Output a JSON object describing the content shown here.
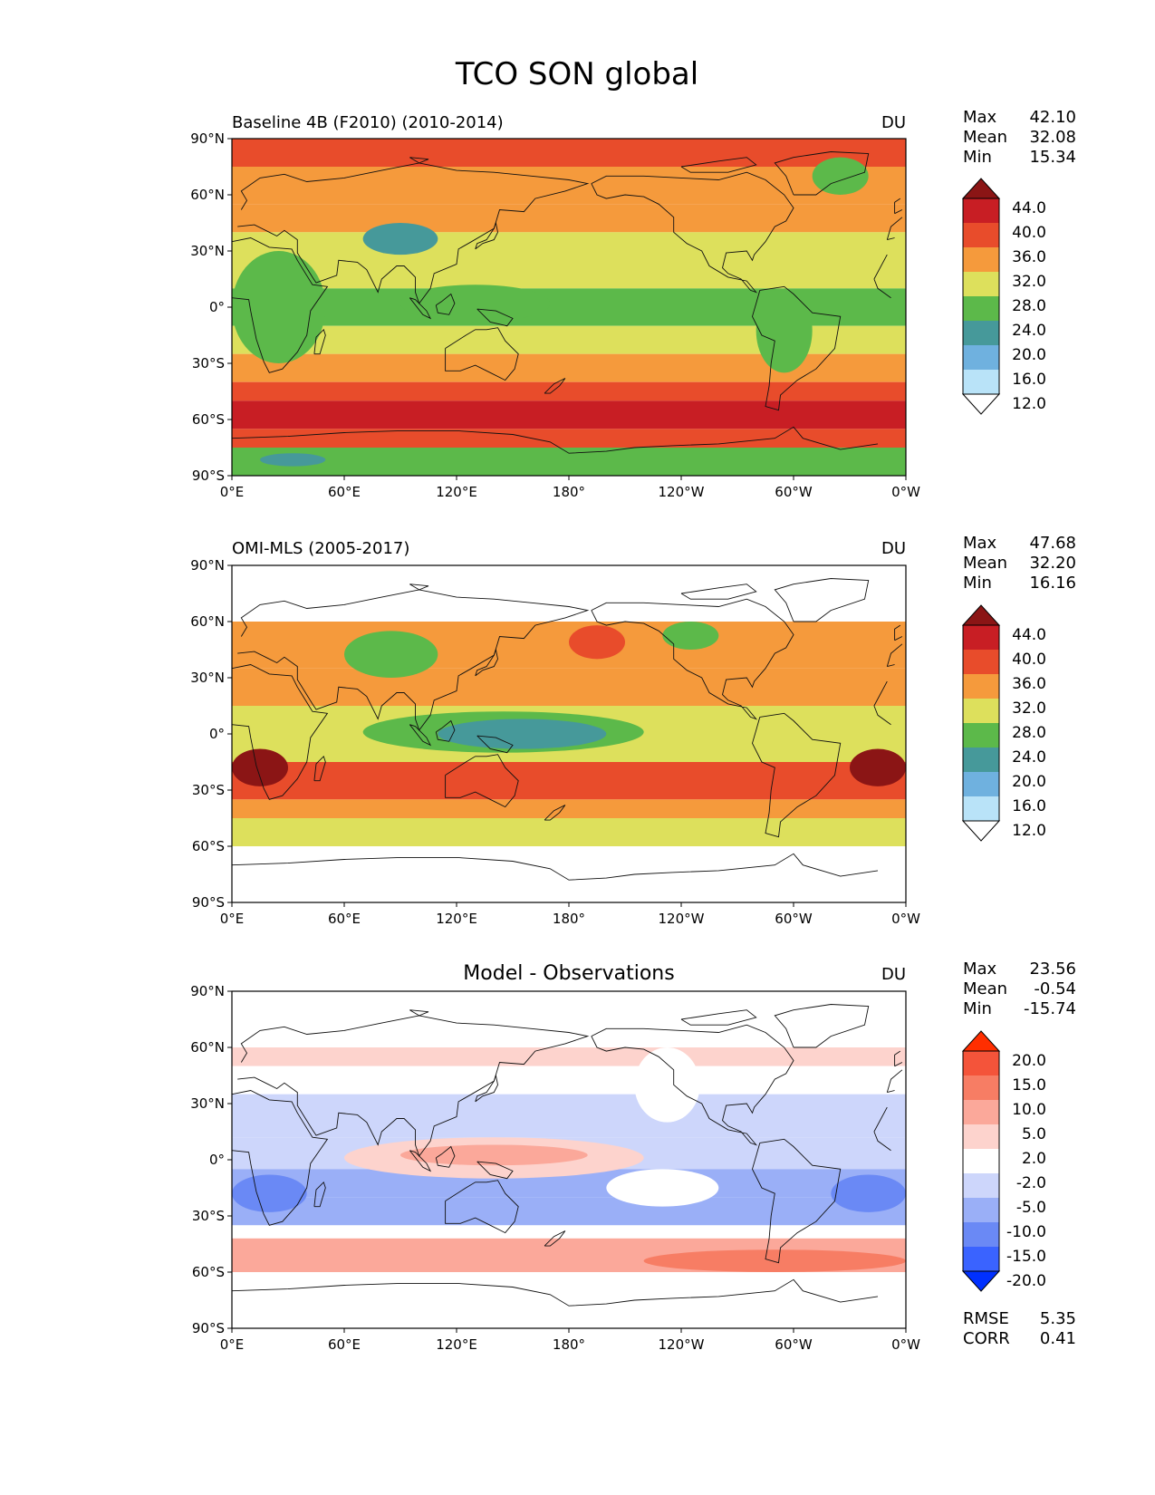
{
  "figure": {
    "title": "TCO SON global"
  },
  "x_ticks": [
    "0°E",
    "60°E",
    "120°E",
    "180°",
    "120°W",
    "60°W",
    "0°W"
  ],
  "y_ticks": [
    "90°N",
    "60°N",
    "30°N",
    "0°",
    "30°S",
    "60°S",
    "90°S"
  ],
  "stat_labels": {
    "max": "Max",
    "mean": "Mean",
    "min": "Min",
    "rmse": "RMSE",
    "corr": "CORR"
  },
  "colormaps": {
    "abs": {
      "colors": [
        "#ffffff",
        "#b9e3f8",
        "#6fb1df",
        "#46999a",
        "#5cb94a",
        "#dde05c",
        "#f59a3c",
        "#e84c2b",
        "#c81e24",
        "#8b1515"
      ],
      "labels": [
        "12.0",
        "16.0",
        "20.0",
        "24.0",
        "28.0",
        "32.0",
        "36.0",
        "40.0",
        "44.0"
      ]
    },
    "diff": {
      "colors": [
        "#0030ff",
        "#3a63ff",
        "#6a89f5",
        "#9aaff7",
        "#cdd6fb",
        "#ffffff",
        "#fdd3cd",
        "#fba89a",
        "#f77d64",
        "#f4543a",
        "#ff2e00"
      ],
      "labels": [
        "-20.0",
        "-15.0",
        "-10.0",
        "-5.0",
        "-2.0",
        "2.0",
        "5.0",
        "10.0",
        "15.0",
        "20.0"
      ]
    }
  },
  "chart_data": [
    {
      "type": "heatmap",
      "title": "Baseline 4B (F2010) (2010-2014)",
      "units": "DU",
      "stats": {
        "max": "42.10",
        "mean": "32.08",
        "min": "15.34"
      },
      "colormap": "abs",
      "lon_range": [
        0,
        360
      ],
      "lat_range": [
        -90,
        90
      ],
      "zonal_bands": [
        {
          "lat": [
            75,
            90
          ],
          "value": 38
        },
        {
          "lat": [
            55,
            75
          ],
          "value": 34
        },
        {
          "lat": [
            40,
            55
          ],
          "value": 32
        },
        {
          "lat": [
            10,
            40
          ],
          "value": 30
        },
        {
          "lat": [
            -10,
            10
          ],
          "value": 26
        },
        {
          "lat": [
            -25,
            -10
          ],
          "value": 29
        },
        {
          "lat": [
            -40,
            -25
          ],
          "value": 34
        },
        {
          "lat": [
            -50,
            -40
          ],
          "value": 38
        },
        {
          "lat": [
            -65,
            -50
          ],
          "value": 41
        },
        {
          "lat": [
            -75,
            -65
          ],
          "value": 37
        },
        {
          "lat": [
            -90,
            -75
          ],
          "value": 26
        }
      ],
      "features": [
        {
          "lon": [
            0,
            50
          ],
          "lat": [
            -30,
            30
          ],
          "value": 26
        },
        {
          "lon": [
            90,
            170
          ],
          "lat": [
            -8,
            12
          ],
          "value": 26
        },
        {
          "lon": [
            80,
            100
          ],
          "lat": [
            30,
            40
          ],
          "value": 17
        },
        {
          "lon": [
            70,
            110
          ],
          "lat": [
            28,
            45
          ],
          "value": 22
        },
        {
          "lon": [
            280,
            310
          ],
          "lat": [
            -35,
            10
          ],
          "value": 25
        },
        {
          "lon": [
            15,
            50
          ],
          "lat": [
            -85,
            -78
          ],
          "value": 23
        },
        {
          "lon": [
            310,
            340
          ],
          "lat": [
            60,
            80
          ],
          "value": 27
        }
      ]
    },
    {
      "type": "heatmap",
      "title": "OMI-MLS (2005-2017)",
      "units": "DU",
      "stats": {
        "max": "47.68",
        "mean": "32.20",
        "min": "16.16"
      },
      "colormap": "abs",
      "lon_range": [
        0,
        360
      ],
      "lat_range": [
        -90,
        90
      ],
      "zonal_bands": [
        {
          "lat": [
            35,
            60
          ],
          "value": 33
        },
        {
          "lat": [
            15,
            35
          ],
          "value": 34
        },
        {
          "lat": [
            0,
            15
          ],
          "value": 30
        },
        {
          "lat": [
            -15,
            0
          ],
          "value": 30
        },
        {
          "lat": [
            -35,
            -15
          ],
          "value": 38
        },
        {
          "lat": [
            -45,
            -35
          ],
          "value": 34
        },
        {
          "lat": [
            -60,
            -45
          ],
          "value": 30
        }
      ],
      "features": [
        {
          "lon": [
            70,
            220
          ],
          "lat": [
            -10,
            12
          ],
          "value": 26
        },
        {
          "lon": [
            110,
            200
          ],
          "lat": [
            -8,
            8
          ],
          "value": 22
        },
        {
          "lon": [
            0,
            30
          ],
          "lat": [
            -28,
            -8
          ],
          "value": 45
        },
        {
          "lon": [
            330,
            360
          ],
          "lat": [
            -28,
            -8
          ],
          "value": 45
        },
        {
          "lon": [
            60,
            110
          ],
          "lat": [
            30,
            55
          ],
          "value": 27
        },
        {
          "lon": [
            230,
            260
          ],
          "lat": [
            45,
            60
          ],
          "value": 27
        },
        {
          "lon": [
            180,
            210
          ],
          "lat": [
            40,
            58
          ],
          "value": 38
        }
      ]
    },
    {
      "type": "heatmap",
      "title": "Model - Observations",
      "units": "DU",
      "stats": {
        "max": "23.56",
        "mean": "-0.54",
        "min": "-15.74"
      },
      "error_stats": {
        "rmse": "5.35",
        "corr": "0.41"
      },
      "colormap": "diff",
      "lon_range": [
        0,
        360
      ],
      "lat_range": [
        -90,
        90
      ],
      "zonal_bands": [
        {
          "lat": [
            50,
            60
          ],
          "value": 3
        },
        {
          "lat": [
            35,
            50
          ],
          "value": 0
        },
        {
          "lat": [
            12,
            35
          ],
          "value": -4
        },
        {
          "lat": [
            -5,
            12
          ],
          "value": -4
        },
        {
          "lat": [
            -20,
            -5
          ],
          "value": -6
        },
        {
          "lat": [
            -35,
            -20
          ],
          "value": -7
        },
        {
          "lat": [
            -42,
            -35
          ],
          "value": 0
        },
        {
          "lat": [
            -60,
            -42
          ],
          "value": 8
        }
      ],
      "features": [
        {
          "lon": [
            60,
            220
          ],
          "lat": [
            -10,
            12
          ],
          "value": 3
        },
        {
          "lon": [
            90,
            190
          ],
          "lat": [
            -3,
            8
          ],
          "value": 6
        },
        {
          "lon": [
            0,
            40
          ],
          "lat": [
            -28,
            -8
          ],
          "value": -11
        },
        {
          "lon": [
            320,
            360
          ],
          "lat": [
            -28,
            -8
          ],
          "value": -11
        },
        {
          "lon": [
            200,
            260
          ],
          "lat": [
            -25,
            -5
          ],
          "value": 0
        },
        {
          "lon": [
            215,
            250
          ],
          "lat": [
            20,
            60
          ],
          "value": 0
        },
        {
          "lon": [
            220,
            360
          ],
          "lat": [
            -60,
            -48
          ],
          "value": 12
        }
      ]
    }
  ]
}
